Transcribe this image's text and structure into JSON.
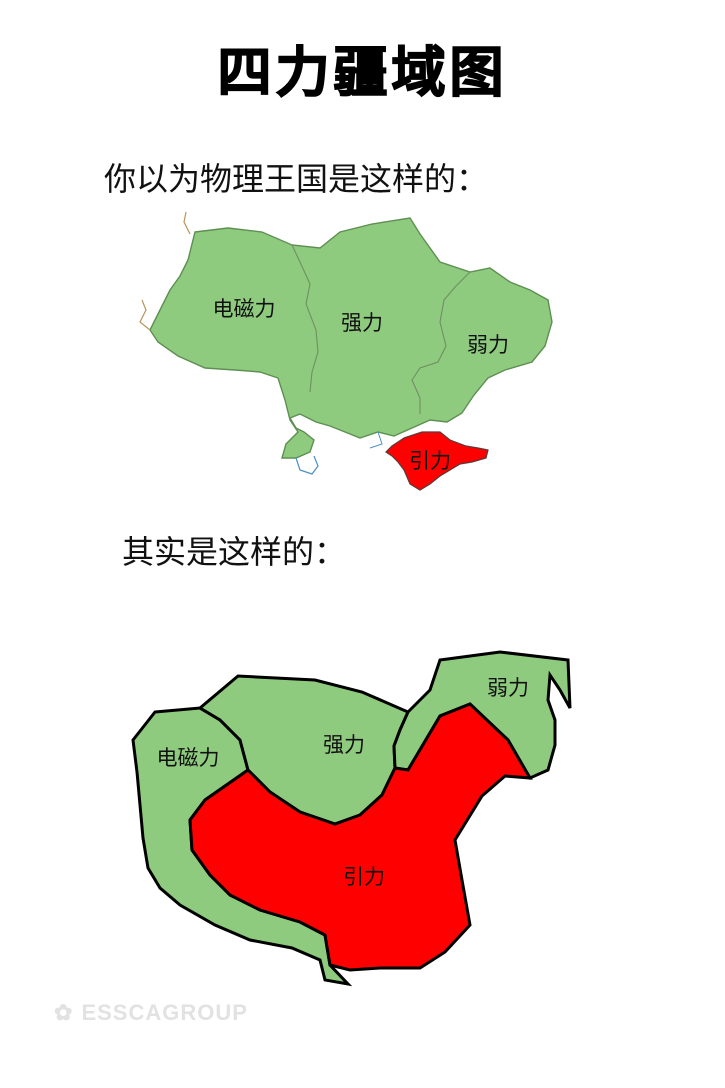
{
  "page": {
    "title": "四力疆域图",
    "caption_first": "你以为物理王国是这样的：",
    "caption_second": "其实是这样的：",
    "watermark": "ESSCAGROUP"
  },
  "map_top": {
    "regions": [
      {
        "id": "electromagnetic",
        "label": "电磁力",
        "color": "#8fcb7e"
      },
      {
        "id": "strong",
        "label": "强力",
        "color": "#8fcb7e"
      },
      {
        "id": "weak",
        "label": "弱力",
        "color": "#8fcb7e"
      },
      {
        "id": "gravity",
        "label": "引力",
        "color": "#ff0000"
      }
    ]
  },
  "map_bottom": {
    "regions": [
      {
        "id": "electromagnetic",
        "label": "电磁力",
        "color": "#8fcb7e"
      },
      {
        "id": "strong",
        "label": "强力",
        "color": "#8fcb7e"
      },
      {
        "id": "weak",
        "label": "弱力",
        "color": "#8fcb7e"
      },
      {
        "id": "gravity",
        "label": "引力",
        "color": "#ff0000"
      }
    ]
  },
  "colors": {
    "land_green": "#8fcb7e",
    "gravity_red": "#ff0000",
    "border_dark": "#000000",
    "river_blue": "#4a90c8"
  },
  "icons": {
    "watermark_icon": "wechat-icon"
  }
}
